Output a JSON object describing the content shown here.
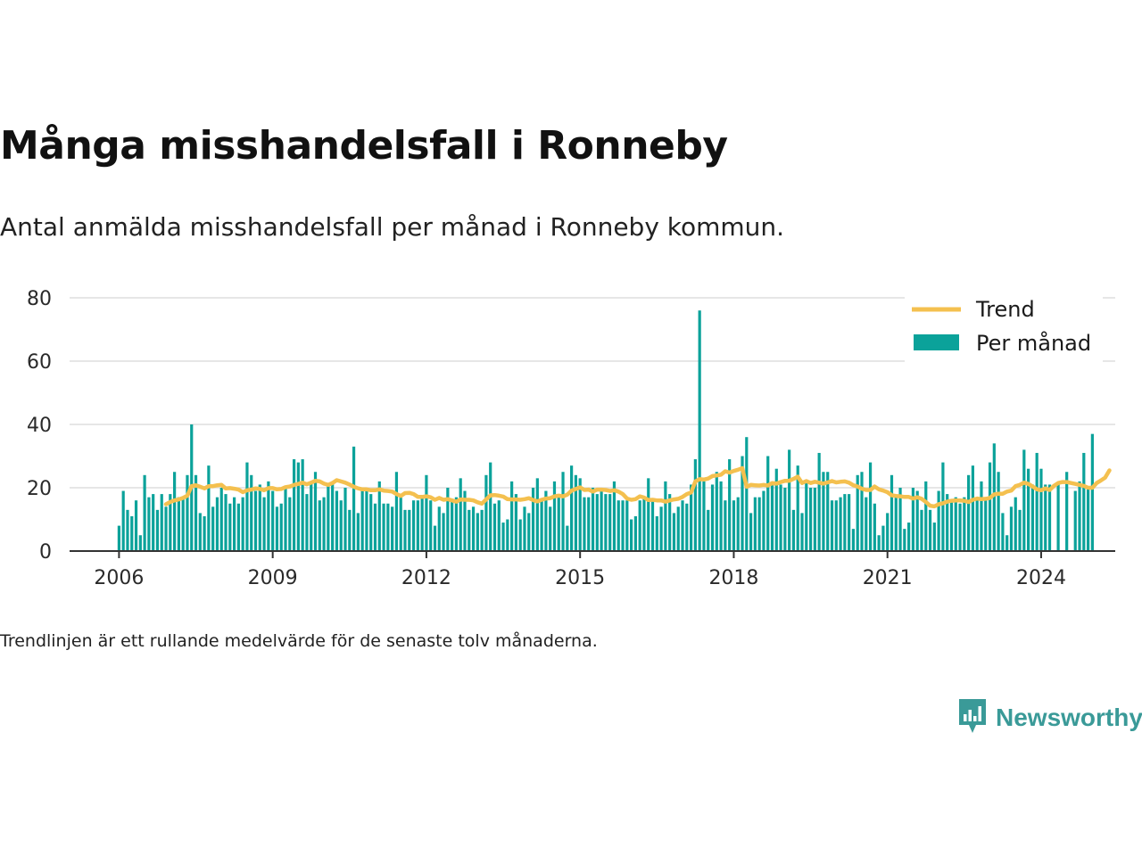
{
  "header": {
    "title": "Många misshandelsfall i Ronneby",
    "subtitle": "Antal anmälda misshandelsfall per månad i Ronneby kommun."
  },
  "footnote": "Trendlinjen är ett rullande medelvärde för de senaste tolv månaderna.",
  "brand": {
    "name": "Newsworthy",
    "icon": "newsworthy-logo-icon"
  },
  "colors": {
    "bars": "#0ba29a",
    "trend": "#f4c04f",
    "grid": "#dddddd",
    "axis": "#333333",
    "brand": "#3a9a98"
  },
  "chart_data": {
    "type": "bar",
    "start": "2006-01",
    "ylim": [
      0,
      80
    ],
    "yticks": [
      "0",
      "20",
      "40",
      "60",
      "80"
    ],
    "xticks": [
      "2006",
      "2009",
      "2012",
      "2015",
      "2018",
      "2021",
      "2024"
    ],
    "grid": true,
    "legend_position": "top-right",
    "series": [
      {
        "name": "Per månad",
        "type": "bar",
        "values": [
          8,
          19,
          13,
          11,
          16,
          5,
          24,
          17,
          18,
          13,
          18,
          14,
          18,
          25,
          17,
          17,
          24,
          40,
          24,
          12,
          11,
          27,
          14,
          17,
          20,
          18,
          15,
          17,
          15,
          17,
          28,
          24,
          19,
          21,
          17,
          22,
          19,
          14,
          15,
          20,
          17,
          29,
          28,
          29,
          18,
          22,
          25,
          16,
          17,
          21,
          22,
          19,
          16,
          20,
          13,
          33,
          12,
          20,
          19,
          18,
          15,
          22,
          15,
          15,
          14,
          25,
          18,
          13,
          13,
          16,
          16,
          17,
          24,
          16,
          8,
          14,
          12,
          20,
          16,
          17,
          23,
          19,
          13,
          14,
          12,
          13,
          24,
          28,
          15,
          16,
          9,
          10,
          22,
          18,
          10,
          14,
          12,
          20,
          23,
          16,
          19,
          14,
          22,
          17,
          25,
          8,
          27,
          24,
          23,
          17,
          17,
          20,
          18,
          19,
          18,
          18,
          22,
          16,
          16,
          16,
          10,
          11,
          16,
          17,
          23,
          16,
          11,
          14,
          22,
          18,
          12,
          14,
          16,
          15,
          21,
          29,
          76,
          22,
          13,
          21,
          25,
          22,
          16,
          29,
          16,
          17,
          30,
          36,
          12,
          17,
          17,
          19,
          30,
          21,
          26,
          21,
          20,
          32,
          13,
          27,
          12,
          22,
          20,
          20,
          31,
          25,
          25,
          16,
          16,
          17,
          18,
          18,
          7,
          24,
          25,
          17,
          28,
          15,
          5,
          8,
          12,
          24,
          17,
          20,
          7,
          9,
          20,
          19,
          13,
          22,
          13,
          9,
          19,
          28,
          18,
          16,
          17,
          15,
          17,
          24,
          27,
          16,
          22,
          17,
          28,
          34,
          25,
          12,
          5,
          14,
          17,
          13,
          32,
          26,
          21,
          31,
          26,
          21,
          21,
          0,
          21,
          0,
          25,
          0,
          19,
          22,
          31,
          20,
          37
        ]
      },
      {
        "name": "Trend",
        "type": "line",
        "values": [
          null,
          null,
          null,
          null,
          null,
          null,
          null,
          null,
          null,
          null,
          null,
          14.8,
          15.5,
          16.0,
          16.3,
          16.8,
          17.5,
          20.5,
          20.8,
          20.3,
          19.8,
          20.5,
          20.5,
          20.8,
          20.9,
          19.8,
          19.9,
          19.7,
          19.4,
          18.6,
          19.2,
          19.4,
          19.8,
          19.6,
          19.2,
          19.9,
          19.9,
          19.5,
          19.6,
          20.2,
          20.4,
          20.9,
          21.2,
          21.6,
          21.1,
          21.6,
          22.2,
          22.0,
          21.3,
          20.9,
          21.5,
          22.4,
          22.0,
          21.6,
          21.0,
          20.3,
          19.8,
          19.5,
          19.5,
          19.2,
          19.2,
          19.5,
          19.1,
          19.0,
          18.8,
          18.0,
          17.4,
          18.3,
          18.4,
          18.0,
          17.1,
          17.1,
          17.3,
          17.0,
          16.2,
          16.8,
          16.2,
          16.4,
          16.0,
          15.6,
          16.3,
          16.2,
          16.2,
          16.0,
          15.4,
          15.0,
          16.3,
          17.6,
          17.7,
          17.5,
          17.2,
          16.4,
          16.3,
          16.3,
          16.2,
          16.4,
          16.7,
          16.1,
          15.7,
          16.2,
          16.6,
          16.7,
          17.3,
          17.5,
          17.3,
          17.8,
          19.1,
          19.6,
          20.1,
          19.3,
          19.4,
          18.8,
          19.4,
          19.4,
          19.3,
          19.0,
          19.2,
          18.8,
          18.0,
          16.6,
          16.2,
          16.4,
          17.3,
          16.9,
          16.1,
          16.2,
          16.0,
          16.0,
          15.6,
          16.0,
          16.3,
          16.5,
          17.1,
          18.0,
          18.5,
          22.0,
          22.7,
          22.6,
          22.9,
          23.7,
          23.9,
          24.1,
          25.2,
          24.8,
          25.3,
          25.7,
          26.2,
          20.3,
          20.9,
          20.8,
          20.7,
          20.9,
          20.7,
          21.5,
          21.3,
          21.8,
          22.2,
          22.2,
          22.8,
          23.5,
          21.5,
          22.1,
          21.5,
          21.9,
          21.6,
          21.3,
          21.7,
          22.1,
          21.7,
          21.9,
          22.0,
          21.6,
          20.8,
          20.4,
          19.7,
          19.3,
          19.3,
          20.4,
          19.5,
          19.1,
          18.6,
          17.6,
          17.4,
          17.3,
          17.1,
          17.1,
          16.6,
          17.0,
          16.5,
          15.5,
          14.3,
          14.1,
          14.8,
          15.1,
          15.6,
          15.9,
          16.0,
          16.0,
          15.9,
          15.5,
          16.2,
          16.6,
          16.4,
          16.5,
          16.8,
          17.9,
          18.1,
          18.1,
          18.8,
          19.1,
          20.5,
          20.9,
          21.6,
          21.2,
          20.4,
          19.5,
          19.2,
          19.8,
          19.3,
          20.6,
          21.5,
          21.8,
          21.8,
          21.5,
          21.2,
          20.9,
          20.6,
          20.0,
          20.0,
          21.5,
          22.3,
          23.2,
          25.5
        ]
      }
    ]
  }
}
